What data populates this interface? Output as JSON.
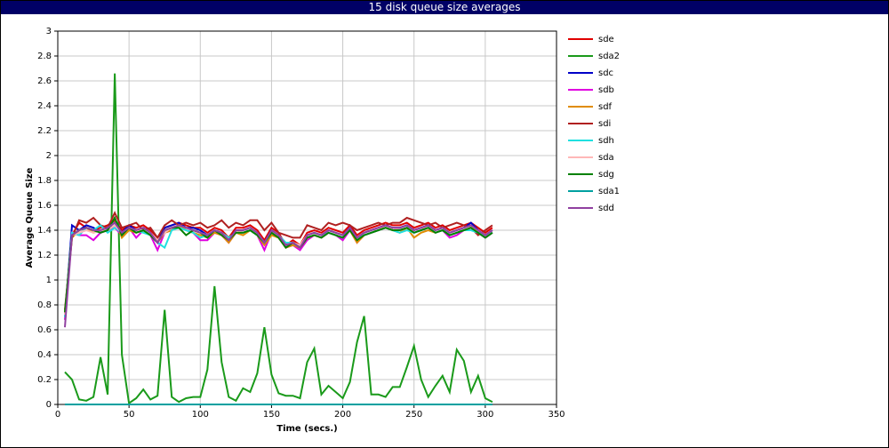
{
  "chart_data": {
    "type": "line",
    "title": "15 disk queue size averages",
    "x_label": "Time (secs.)",
    "y_label": "Average Queue Size",
    "xlim": [
      0,
      350
    ],
    "xticks": [
      0,
      50,
      100,
      150,
      200,
      250,
      300,
      350
    ],
    "ylim": [
      0,
      3
    ],
    "yticks": [
      0,
      0.2,
      0.4,
      0.6,
      0.8,
      1,
      1.2,
      1.4,
      1.6,
      1.8,
      2,
      2.2,
      2.4,
      2.6,
      2.8,
      3
    ],
    "grid": true,
    "legend": "right",
    "x": [
      5,
      10,
      15,
      20,
      25,
      30,
      35,
      40,
      45,
      50,
      55,
      60,
      65,
      70,
      75,
      80,
      85,
      90,
      95,
      100,
      105,
      110,
      115,
      120,
      125,
      130,
      135,
      140,
      145,
      150,
      155,
      160,
      165,
      170,
      175,
      180,
      185,
      190,
      195,
      200,
      205,
      210,
      215,
      220,
      225,
      230,
      235,
      240,
      245,
      250,
      255,
      260,
      265,
      270,
      275,
      280,
      285,
      290,
      295,
      300,
      305
    ],
    "series": [
      {
        "name": "sde",
        "color": "#e00000",
        "values": [
          0.72,
          1.36,
          1.46,
          1.42,
          1.4,
          1.42,
          1.44,
          1.48,
          1.4,
          1.44,
          1.42,
          1.44,
          1.4,
          1.32,
          1.42,
          1.44,
          1.46,
          1.44,
          1.42,
          1.42,
          1.38,
          1.42,
          1.4,
          1.34,
          1.42,
          1.42,
          1.44,
          1.4,
          1.32,
          1.42,
          1.38,
          1.28,
          1.32,
          1.28,
          1.38,
          1.4,
          1.38,
          1.42,
          1.4,
          1.38,
          1.44,
          1.36,
          1.4,
          1.42,
          1.44,
          1.46,
          1.44,
          1.44,
          1.46,
          1.42,
          1.44,
          1.46,
          1.42,
          1.44,
          1.4,
          1.42,
          1.44,
          1.46,
          1.42,
          1.38,
          1.42
        ]
      },
      {
        "name": "sda2",
        "color": "#1a9a1a",
        "values": [
          0.26,
          0.2,
          0.04,
          0.03,
          0.06,
          0.38,
          0.08,
          2.66,
          0.4,
          0.01,
          0.05,
          0.12,
          0.04,
          0.07,
          0.76,
          0.06,
          0.02,
          0.05,
          0.06,
          0.06,
          0.28,
          0.95,
          0.34,
          0.06,
          0.03,
          0.13,
          0.1,
          0.25,
          0.62,
          0.24,
          0.09,
          0.07,
          0.07,
          0.05,
          0.34,
          0.45,
          0.08,
          0.15,
          0.1,
          0.05,
          0.18,
          0.5,
          0.71,
          0.08,
          0.08,
          0.06,
          0.14,
          0.14,
          0.3,
          0.47,
          0.2,
          0.06,
          0.15,
          0.23,
          0.1,
          0.44,
          0.35,
          0.1,
          0.23,
          0.05,
          0.02
        ]
      },
      {
        "name": "sdc",
        "color": "#0000c8",
        "values": [
          0.7,
          1.44,
          1.4,
          1.44,
          1.42,
          1.38,
          1.42,
          1.46,
          1.38,
          1.44,
          1.4,
          1.42,
          1.38,
          1.3,
          1.42,
          1.44,
          1.46,
          1.42,
          1.42,
          1.4,
          1.36,
          1.4,
          1.38,
          1.32,
          1.4,
          1.4,
          1.42,
          1.38,
          1.3,
          1.4,
          1.36,
          1.28,
          1.3,
          1.26,
          1.36,
          1.38,
          1.36,
          1.4,
          1.38,
          1.36,
          1.42,
          1.34,
          1.38,
          1.4,
          1.42,
          1.44,
          1.42,
          1.42,
          1.44,
          1.4,
          1.42,
          1.44,
          1.4,
          1.42,
          1.38,
          1.4,
          1.42,
          1.46,
          1.4,
          1.36,
          1.4
        ]
      },
      {
        "name": "sdb",
        "color": "#e000e0",
        "values": [
          0.68,
          1.38,
          1.36,
          1.36,
          1.32,
          1.38,
          1.4,
          1.42,
          1.36,
          1.42,
          1.34,
          1.4,
          1.36,
          1.24,
          1.38,
          1.4,
          1.44,
          1.4,
          1.38,
          1.32,
          1.32,
          1.38,
          1.36,
          1.3,
          1.38,
          1.38,
          1.4,
          1.36,
          1.24,
          1.38,
          1.34,
          1.26,
          1.28,
          1.24,
          1.32,
          1.36,
          1.34,
          1.38,
          1.36,
          1.32,
          1.4,
          1.3,
          1.36,
          1.38,
          1.4,
          1.42,
          1.4,
          1.4,
          1.42,
          1.38,
          1.4,
          1.42,
          1.38,
          1.4,
          1.34,
          1.36,
          1.4,
          1.42,
          1.38,
          1.34,
          1.38
        ]
      },
      {
        "name": "sdf",
        "color": "#e08c00",
        "values": [
          0.74,
          1.34,
          1.4,
          1.42,
          1.38,
          1.4,
          1.42,
          1.5,
          1.34,
          1.4,
          1.38,
          1.4,
          1.36,
          1.3,
          1.38,
          1.4,
          1.44,
          1.4,
          1.38,
          1.36,
          1.34,
          1.38,
          1.36,
          1.3,
          1.38,
          1.36,
          1.4,
          1.36,
          1.28,
          1.36,
          1.34,
          1.26,
          1.28,
          1.26,
          1.34,
          1.36,
          1.34,
          1.38,
          1.36,
          1.34,
          1.4,
          1.3,
          1.36,
          1.38,
          1.4,
          1.42,
          1.4,
          1.38,
          1.42,
          1.34,
          1.38,
          1.4,
          1.38,
          1.4,
          1.36,
          1.38,
          1.4,
          1.42,
          1.38,
          1.36,
          1.38
        ]
      },
      {
        "name": "sdi",
        "color": "#b02020",
        "values": [
          0.76,
          1.34,
          1.48,
          1.46,
          1.5,
          1.44,
          1.42,
          1.54,
          1.42,
          1.44,
          1.46,
          1.4,
          1.42,
          1.34,
          1.44,
          1.48,
          1.44,
          1.46,
          1.44,
          1.46,
          1.42,
          1.44,
          1.48,
          1.42,
          1.46,
          1.44,
          1.48,
          1.48,
          1.4,
          1.46,
          1.38,
          1.36,
          1.34,
          1.34,
          1.44,
          1.42,
          1.4,
          1.46,
          1.44,
          1.46,
          1.44,
          1.4,
          1.42,
          1.44,
          1.46,
          1.44,
          1.46,
          1.46,
          1.5,
          1.48,
          1.46,
          1.44,
          1.46,
          1.42,
          1.44,
          1.46,
          1.44,
          1.42,
          1.36,
          1.4,
          1.44
        ]
      },
      {
        "name": "sdh",
        "color": "#20e0e0",
        "values": [
          0.7,
          1.38,
          1.36,
          1.42,
          1.4,
          1.44,
          1.38,
          1.42,
          1.38,
          1.42,
          1.4,
          1.38,
          1.36,
          1.3,
          1.26,
          1.4,
          1.42,
          1.4,
          1.38,
          1.34,
          1.36,
          1.4,
          1.38,
          1.34,
          1.38,
          1.38,
          1.4,
          1.36,
          1.3,
          1.38,
          1.36,
          1.3,
          1.3,
          1.26,
          1.36,
          1.38,
          1.36,
          1.38,
          1.36,
          1.34,
          1.4,
          1.34,
          1.36,
          1.38,
          1.4,
          1.42,
          1.4,
          1.38,
          1.4,
          1.38,
          1.4,
          1.42,
          1.38,
          1.4,
          1.36,
          1.38,
          1.4,
          1.4,
          1.38,
          1.36,
          1.38
        ]
      },
      {
        "name": "sda",
        "color": "#ffb8b8",
        "values": [
          0.72,
          1.36,
          1.38,
          1.4,
          1.38,
          1.4,
          1.4,
          1.44,
          1.38,
          1.42,
          1.4,
          1.4,
          1.38,
          1.32,
          1.38,
          1.42,
          1.44,
          1.42,
          1.4,
          1.38,
          1.36,
          1.4,
          1.38,
          1.32,
          1.38,
          1.4,
          1.42,
          1.38,
          1.3,
          1.38,
          1.36,
          1.28,
          1.3,
          1.28,
          1.36,
          1.38,
          1.36,
          1.4,
          1.38,
          1.36,
          1.4,
          1.34,
          1.38,
          1.4,
          1.42,
          1.42,
          1.42,
          1.4,
          1.42,
          1.4,
          1.42,
          1.42,
          1.4,
          1.42,
          1.38,
          1.4,
          1.42,
          1.42,
          1.4,
          1.36,
          1.4
        ]
      },
      {
        "name": "sdg",
        "color": "#008000",
        "values": [
          0.74,
          1.36,
          1.4,
          1.42,
          1.4,
          1.38,
          1.4,
          1.5,
          1.36,
          1.42,
          1.38,
          1.4,
          1.36,
          1.3,
          1.4,
          1.42,
          1.42,
          1.36,
          1.4,
          1.38,
          1.34,
          1.4,
          1.36,
          1.32,
          1.38,
          1.38,
          1.4,
          1.36,
          1.3,
          1.38,
          1.34,
          1.26,
          1.3,
          1.26,
          1.34,
          1.36,
          1.34,
          1.38,
          1.36,
          1.34,
          1.4,
          1.32,
          1.36,
          1.38,
          1.4,
          1.42,
          1.4,
          1.4,
          1.42,
          1.38,
          1.4,
          1.42,
          1.38,
          1.4,
          1.36,
          1.38,
          1.4,
          1.42,
          1.38,
          1.34,
          1.38
        ]
      },
      {
        "name": "sda1",
        "color": "#00a0a0",
        "values": [
          0,
          0,
          0,
          0,
          0,
          0,
          0,
          0,
          0,
          0,
          0,
          0,
          0,
          0,
          0,
          0,
          0,
          0,
          0,
          0,
          0,
          0,
          0,
          0,
          0,
          0,
          0,
          0,
          0,
          0,
          0,
          0,
          0,
          0,
          0,
          0,
          0,
          0,
          0,
          0,
          0,
          0,
          0,
          0,
          0,
          0,
          0,
          0,
          0,
          0,
          0,
          0,
          0,
          0,
          0,
          0,
          0,
          0,
          0,
          0,
          0
        ]
      },
      {
        "name": "sdd",
        "color": "#9040a0",
        "values": [
          0.62,
          1.36,
          1.4,
          1.42,
          1.4,
          1.4,
          1.42,
          1.46,
          1.38,
          1.42,
          1.4,
          1.42,
          1.38,
          1.3,
          1.4,
          1.42,
          1.44,
          1.42,
          1.4,
          1.38,
          1.36,
          1.4,
          1.38,
          1.32,
          1.4,
          1.4,
          1.42,
          1.38,
          1.3,
          1.4,
          1.36,
          1.28,
          1.3,
          1.26,
          1.36,
          1.38,
          1.36,
          1.4,
          1.38,
          1.36,
          1.42,
          1.34,
          1.38,
          1.4,
          1.42,
          1.44,
          1.42,
          1.42,
          1.44,
          1.4,
          1.42,
          1.44,
          1.4,
          1.42,
          1.38,
          1.4,
          1.42,
          1.44,
          1.4,
          1.36,
          1.4
        ]
      }
    ]
  }
}
